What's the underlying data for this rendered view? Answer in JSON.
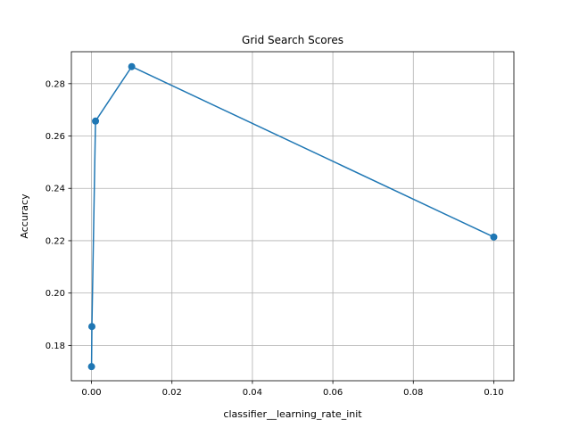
{
  "chart_data": {
    "type": "line",
    "title": "Grid Search Scores",
    "xlabel": "classifier__learning_rate_init",
    "ylabel": "Accuracy",
    "xlim": [
      -0.005,
      0.105
    ],
    "ylim": [
      0.1665,
      0.2922
    ],
    "grid": true,
    "x_ticks": [
      0.0,
      0.02,
      0.04,
      0.06,
      0.08,
      0.1
    ],
    "x_tick_labels": [
      "0.00",
      "0.02",
      "0.04",
      "0.06",
      "0.08",
      "0.10"
    ],
    "y_ticks": [
      0.18,
      0.2,
      0.22,
      0.24,
      0.26,
      0.28
    ],
    "y_tick_labels": [
      "0.18",
      "0.20",
      "0.22",
      "0.24",
      "0.26",
      "0.28"
    ],
    "series": [
      {
        "x": [
          1e-05,
          0.0001,
          0.001,
          0.01,
          0.1
        ],
        "y": [
          0.1719,
          0.1872,
          0.2657,
          0.2865,
          0.2214
        ],
        "color": "#1f77b4",
        "marker": "circle"
      }
    ]
  }
}
